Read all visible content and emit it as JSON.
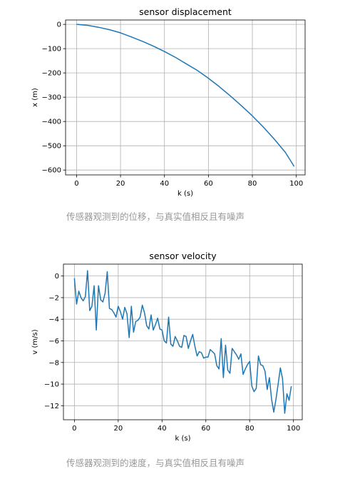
{
  "captions": [
    "传感器观测到的位移，与真实值相反且有噪声",
    "传感器观测到的速度，与真实值相反且有噪声"
  ],
  "colors": {
    "line": "#1f77b4",
    "grid": "#b0b0b0",
    "caption": "#999999"
  },
  "chart_data": [
    {
      "type": "line",
      "title": "sensor displacement",
      "xlabel": "k (s)",
      "ylabel": "x (m)",
      "xlim": [
        -5,
        104
      ],
      "ylim": [
        -620,
        18
      ],
      "xticks": [
        0,
        20,
        40,
        60,
        80,
        100
      ],
      "yticks": [
        0,
        -100,
        -200,
        -300,
        -400,
        -500,
        -600
      ],
      "grid": true,
      "series": [
        {
          "x": [
            0,
            5,
            10,
            15,
            20,
            25,
            30,
            35,
            40,
            45,
            50,
            55,
            60,
            65,
            70,
            75,
            80,
            85,
            90,
            95,
            99
          ],
          "values": [
            0,
            -4,
            -12,
            -22,
            -35,
            -52,
            -70,
            -90,
            -112,
            -136,
            -163,
            -190,
            -222,
            -257,
            -295,
            -335,
            -377,
            -423,
            -473,
            -527,
            -585
          ]
        }
      ]
    },
    {
      "type": "line",
      "title": "sensor velocity",
      "xlabel": "k (s)",
      "ylabel": "v (m/s)",
      "xlim": [
        -5,
        104
      ],
      "ylim": [
        -13.3,
        1.1
      ],
      "xticks": [
        0,
        20,
        40,
        60,
        80,
        100
      ],
      "yticks": [
        0,
        -2,
        -4,
        -6,
        -8,
        -10,
        -12
      ],
      "grid": true,
      "series": [
        {
          "x": [
            0,
            1,
            2,
            3,
            4,
            5,
            6,
            7,
            8,
            9,
            10,
            11,
            12,
            13,
            14,
            15,
            16,
            17,
            18,
            19,
            20,
            21,
            22,
            23,
            24,
            25,
            26,
            27,
            28,
            29,
            30,
            31,
            32,
            33,
            34,
            35,
            36,
            37,
            38,
            39,
            40,
            41,
            42,
            43,
            44,
            45,
            46,
            47,
            48,
            49,
            50,
            51,
            52,
            53,
            54,
            55,
            56,
            57,
            58,
            59,
            60,
            61,
            62,
            63,
            64,
            65,
            66,
            67,
            68,
            69,
            70,
            71,
            72,
            73,
            74,
            75,
            76,
            77,
            78,
            79,
            80,
            81,
            82,
            83,
            84,
            85,
            86,
            87,
            88,
            89,
            90,
            91,
            92,
            93,
            94,
            95,
            96,
            97,
            98,
            99
          ],
          "values": [
            -0.2,
            -2.6,
            -1.4,
            -2,
            -2.3,
            -1.9,
            0.5,
            -3.2,
            -2.8,
            -0.9,
            -5,
            -0.9,
            -2.2,
            -2.4,
            -1.6,
            0.4,
            -3,
            -3.1,
            -3.4,
            -3.8,
            -2.8,
            -3.3,
            -4,
            -2.9,
            -3.5,
            -5.7,
            -2.8,
            -5.2,
            -4.2,
            -4.1,
            -3.8,
            -2.7,
            -3.4,
            -4.6,
            -4.9,
            -3.6,
            -5,
            -4.5,
            -3.9,
            -4.9,
            -5,
            -6,
            -6.2,
            -3.8,
            -6.3,
            -6.5,
            -5.6,
            -6,
            -6.5,
            -6.6,
            -5.5,
            -5.6,
            -6.7,
            -6,
            -5.4,
            -6.5,
            -7.4,
            -7,
            -7.1,
            -7.6,
            -7.5,
            -7.5,
            -6.8,
            -7,
            -7.2,
            -8.3,
            -8.6,
            -5.8,
            -9.4,
            -6.4,
            -8.7,
            -9,
            -6.7,
            -7,
            -7.3,
            -7.7,
            -7.2,
            -9.1,
            -8.6,
            -8.2,
            -7.9,
            -10.2,
            -10.7,
            -10.4,
            -7.4,
            -8.2,
            -8.3,
            -8.8,
            -10.5,
            -9.4,
            -11.4,
            -12.6,
            -11.4,
            -10,
            -8.5,
            -9.5,
            -12.7,
            -10.9,
            -11.5,
            -10.2
          ]
        }
      ]
    }
  ]
}
